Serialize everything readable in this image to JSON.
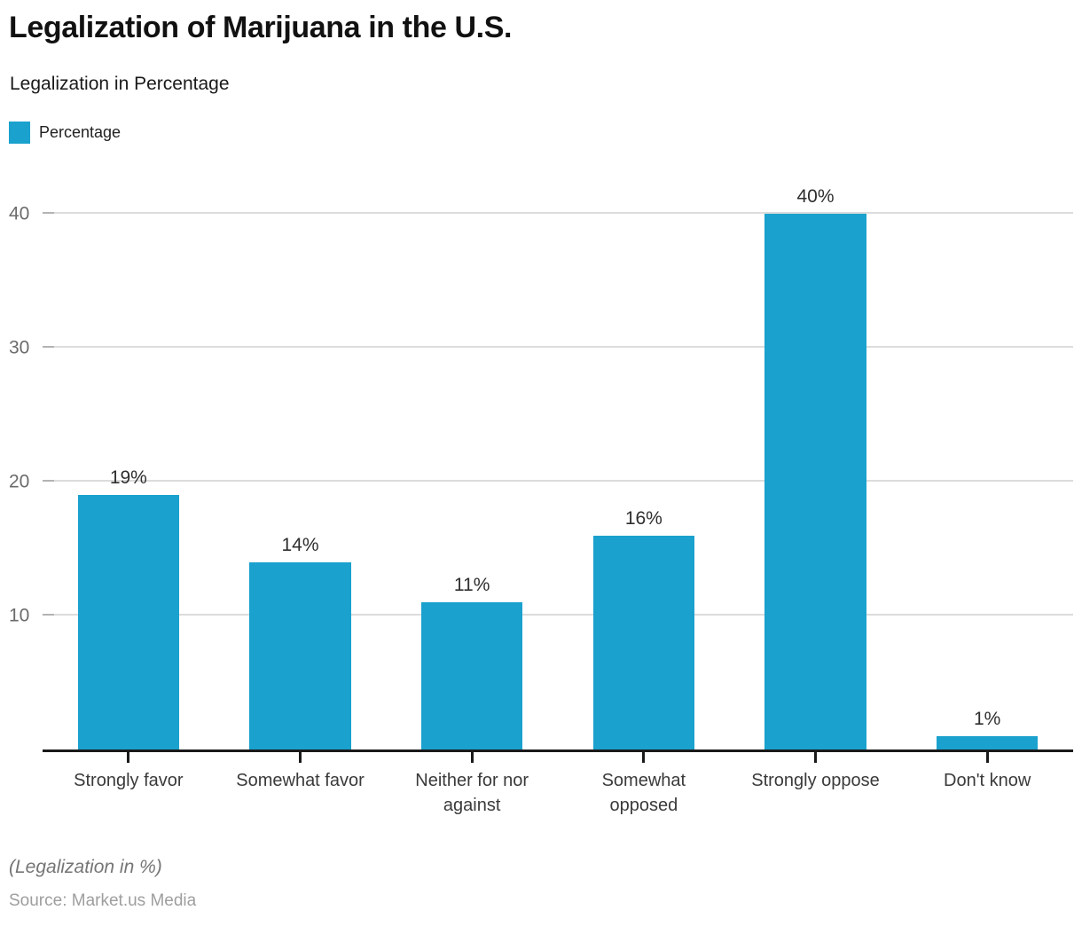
{
  "header": {
    "title": "Legalization of Marijuana in the U.S.",
    "subtitle": "Legalization in Percentage"
  },
  "legend": {
    "label": "Percentage",
    "swatch_color": "#1aa1ce"
  },
  "chart_data": {
    "type": "bar",
    "title": "Legalization of Marijuana in the U.S.",
    "subtitle": "Legalization in Percentage",
    "legend_entries": [
      "Percentage"
    ],
    "legend_position": "top-left",
    "categories": [
      "Strongly favor",
      "Somewhat favor",
      "Neither for nor against",
      "Somewhat opposed",
      "Strongly oppose",
      "Don't know"
    ],
    "values": [
      19,
      14,
      11,
      16,
      40,
      1
    ],
    "data_labels": [
      "19%",
      "14%",
      "11%",
      "16%",
      "40%",
      "1%"
    ],
    "xlabel": "",
    "ylabel": "",
    "ylim": [
      0,
      44
    ],
    "y_ticks": [
      10,
      20,
      30,
      40
    ],
    "grid": "horizontal",
    "bar_color": "#1aa1ce",
    "gridline_color": "#dcdcdc",
    "axis_color": "#1a1a1a"
  },
  "footer": {
    "note": "(Legalization in %)",
    "source": "Source: Market.us Media"
  }
}
